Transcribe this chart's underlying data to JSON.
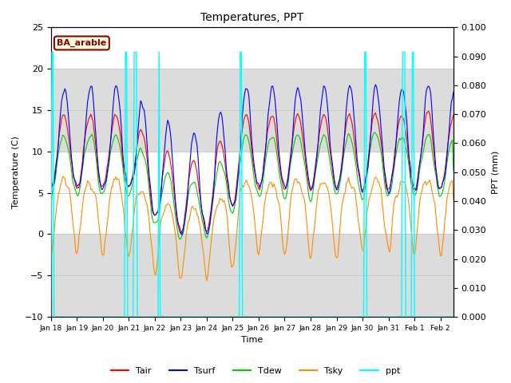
{
  "title": "Temperatures, PPT",
  "xlabel": "Time",
  "ylabel_left": "Temperature (C)",
  "ylabel_right": "PPT (mm)",
  "ylim_left": [
    -10,
    25
  ],
  "ylim_right": [
    0.0,
    0.1
  ],
  "yticks_left": [
    -10,
    -5,
    0,
    5,
    10,
    15,
    20,
    25
  ],
  "yticks_right": [
    0.0,
    0.01,
    0.02,
    0.03,
    0.04,
    0.05,
    0.06,
    0.07,
    0.08,
    0.09,
    0.1
  ],
  "label_box_text": "BA_arable",
  "label_box_facecolor": "#FFFFE0",
  "label_box_edgecolor": "#8B0000",
  "label_box_textcolor": "#8B0000",
  "line_colors": {
    "Tair": "#FF0000",
    "Tsurf": "#0000FF",
    "Tdew": "#00CC00",
    "Tsky": "#FF8C00",
    "ppt": "#00FFFF"
  },
  "legend_labels": [
    "Tair",
    "Tsurf",
    "Tdew",
    "Tsky",
    "ppt"
  ],
  "background_color": "#FFFFFF",
  "grid_color": "#C8C8C8",
  "shaded_bands": [
    {
      "ymin": -10,
      "ymax": 0,
      "color": "#DCDCDC"
    },
    {
      "ymin": 10,
      "ymax": 20,
      "color": "#DCDCDC"
    }
  ],
  "figsize": [
    6.4,
    4.8
  ],
  "dpi": 100
}
